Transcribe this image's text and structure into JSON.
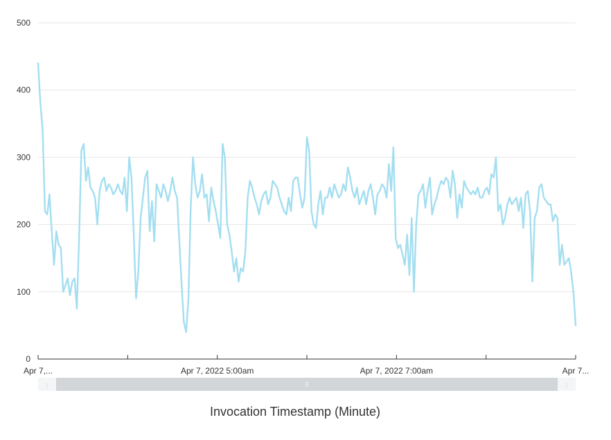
{
  "chart_data": {
    "type": "line",
    "title": "",
    "xlabel": "Invocation Timestamp (Minute)",
    "ylabel": "",
    "ylim": [
      0,
      500
    ],
    "yticks": [
      "0",
      "100",
      "200",
      "300",
      "400",
      "500"
    ],
    "xtick_labels": [
      "Apr 7,...",
      "Apr 7, 2022 5:00am",
      "Apr 7, 2022 7:00am",
      "Apr 7..."
    ],
    "grid": true,
    "series": [
      {
        "values": [
          440,
          380,
          340,
          220,
          215,
          245,
          190,
          140,
          190,
          170,
          165,
          100,
          110,
          120,
          95,
          115,
          120,
          75,
          180,
          310,
          320,
          265,
          285,
          255,
          250,
          240,
          200,
          250,
          265,
          270,
          250,
          260,
          255,
          245,
          250,
          260,
          250,
          245,
          270,
          220,
          300,
          270,
          185,
          90,
          130,
          210,
          240,
          270,
          280,
          190,
          235,
          175,
          260,
          250,
          240,
          260,
          250,
          235,
          250,
          270,
          250,
          240,
          175,
          110,
          55,
          40,
          90,
          225,
          300,
          260,
          240,
          250,
          275,
          240,
          245,
          205,
          255,
          235,
          220,
          200,
          180,
          320,
          300,
          200,
          185,
          160,
          130,
          150,
          115,
          135,
          130,
          160,
          240,
          265,
          255,
          240,
          230,
          215,
          235,
          245,
          250,
          230,
          240,
          265,
          260,
          255,
          240,
          230,
          220,
          215,
          240,
          220,
          265,
          270,
          270,
          245,
          225,
          240,
          330,
          310,
          220,
          200,
          195,
          230,
          250,
          215,
          240,
          240,
          255,
          240,
          260,
          250,
          240,
          245,
          260,
          250,
          285,
          270,
          250,
          240,
          255,
          230,
          240,
          250,
          230,
          250,
          260,
          240,
          215,
          245,
          250,
          260,
          255,
          240,
          290,
          250,
          315,
          180,
          165,
          170,
          155,
          140,
          185,
          125,
          210,
          100,
          200,
          245,
          250,
          260,
          225,
          250,
          270,
          215,
          230,
          240,
          255,
          265,
          260,
          270,
          265,
          240,
          280,
          260,
          210,
          245,
          225,
          265,
          255,
          250,
          245,
          250,
          245,
          255,
          240,
          240,
          250,
          255,
          245,
          275,
          270,
          300,
          220,
          230,
          200,
          210,
          230,
          240,
          230,
          235,
          240,
          220,
          240,
          195,
          245,
          250,
          220,
          115,
          210,
          220,
          255,
          260,
          240,
          235,
          230,
          230,
          205,
          215,
          210,
          140,
          170,
          140,
          145,
          150,
          130,
          100,
          50
        ]
      }
    ],
    "colors": {
      "series": "#a3def0",
      "grid": "#e6e6e6",
      "axis": "#333333"
    },
    "scrollbar": {
      "handle_icon": "grip-icon",
      "left_icon": "left-grip-icon",
      "right_icon": "right-grip-icon"
    }
  }
}
